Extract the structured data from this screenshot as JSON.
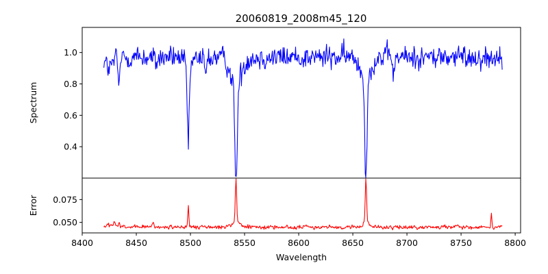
{
  "chart_data": {
    "type": "line",
    "title": "20060819_2008m45_120",
    "xlabel": "Wavelength",
    "xlim": [
      8400,
      8805
    ],
    "x_ticks": [
      8400,
      8450,
      8500,
      8550,
      8600,
      8650,
      8700,
      8750,
      8800
    ],
    "x_range_data": [
      8420,
      8788
    ],
    "panels": [
      {
        "name": "spectrum",
        "ylabel": "Spectrum",
        "ylim": [
          0.2,
          1.16
        ],
        "y_ticks": [
          0.4,
          0.6,
          0.8,
          1.0
        ],
        "y_tick_labels": [
          "0.4",
          "0.6",
          "0.8",
          "1.0"
        ],
        "color": "#0000ff",
        "baseline": 0.97,
        "noise": 0.045,
        "features": [
          {
            "center": 8425,
            "depth": 0.07,
            "width": 3
          },
          {
            "center": 8434,
            "depth": 0.17,
            "width": 0.9
          },
          {
            "center": 8468,
            "depth": 0.03,
            "width": 2
          },
          {
            "center": 8498.0,
            "depth": 0.51,
            "width": 0.9
          },
          {
            "center": 8498.0,
            "depth": 0.06,
            "width": 4
          },
          {
            "center": 8514,
            "depth": 0.12,
            "width": 1.0
          },
          {
            "center": 8542.1,
            "depth": 0.64,
            "width": 1.1
          },
          {
            "center": 8542.1,
            "depth": 0.17,
            "width": 5
          },
          {
            "center": 8662.1,
            "depth": 0.62,
            "width": 1.0
          },
          {
            "center": 8662.1,
            "depth": 0.14,
            "width": 4.5
          },
          {
            "center": 8688,
            "depth": 0.12,
            "width": 0.8
          }
        ]
      },
      {
        "name": "error",
        "ylabel": "Error",
        "ylim": [
          0.0385,
          0.0985
        ],
        "y_ticks": [
          0.05,
          0.075
        ],
        "y_tick_labels": [
          "0.050",
          "0.075"
        ],
        "color": "#ff0000",
        "baseline": 0.0448,
        "noise": 0.0014,
        "features": [
          {
            "center": 8425,
            "depth": -0.002,
            "width": 3
          },
          {
            "center": 8430,
            "depth": -0.006,
            "width": 0.6
          },
          {
            "center": 8434,
            "depth": -0.005,
            "width": 0.6
          },
          {
            "center": 8465,
            "depth": -0.005,
            "width": 0.7
          },
          {
            "center": 8498.0,
            "depth": -0.022,
            "width": 0.5
          },
          {
            "center": 8542.1,
            "depth": -0.049,
            "width": 0.6
          },
          {
            "center": 8542.1,
            "depth": -0.006,
            "width": 4
          },
          {
            "center": 8662.1,
            "depth": -0.051,
            "width": 0.6
          },
          {
            "center": 8662.1,
            "depth": -0.004,
            "width": 3
          },
          {
            "center": 8755,
            "depth": -0.004,
            "width": 0.5
          },
          {
            "center": 8778,
            "depth": -0.014,
            "width": 0.5
          }
        ]
      }
    ]
  }
}
